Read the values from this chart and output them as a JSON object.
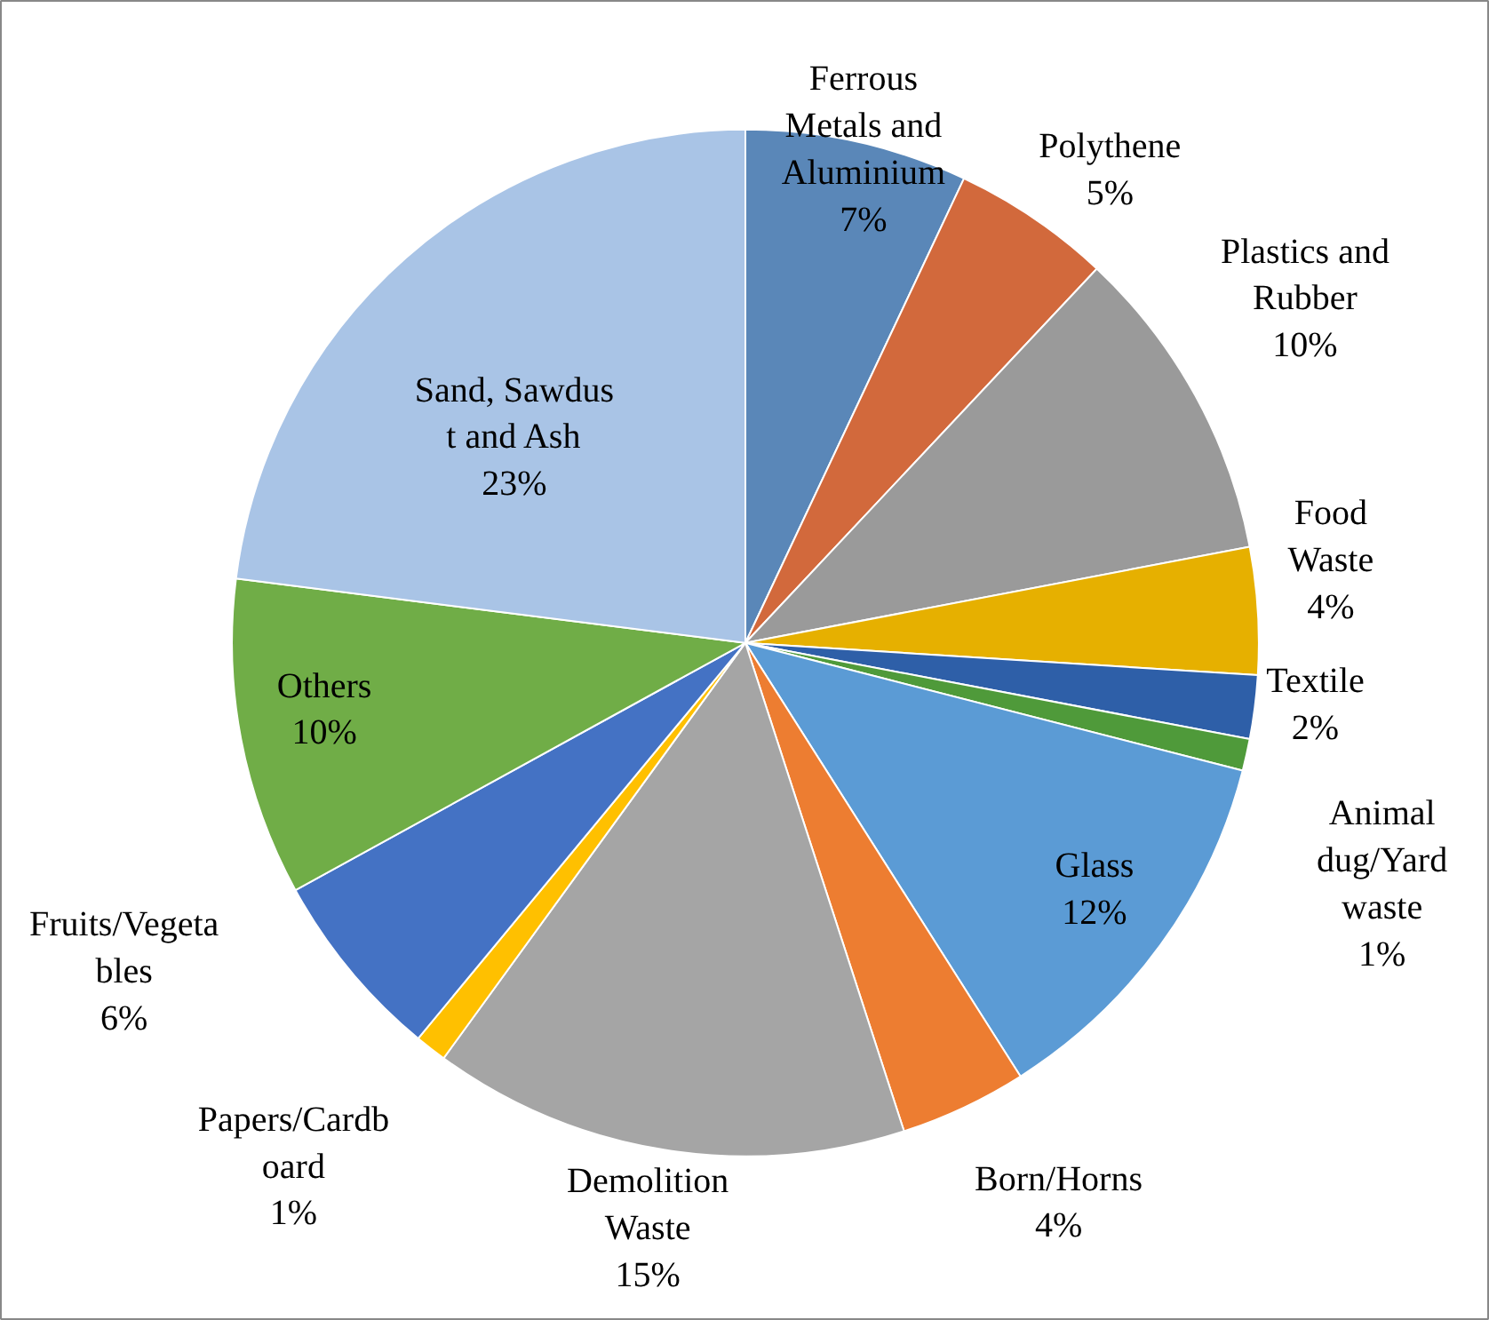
{
  "chart_data": {
    "type": "pie",
    "categories": [
      "Ferrous\nMetals and\nAluminium",
      "Polythene",
      "Plastics and\nRubber",
      "Food\nWaste",
      "Textile",
      "Animal\ndug/Yard\nwaste",
      "Glass",
      "Born/Horns",
      "Demolition\nWaste",
      "Papers/Cardb\noard",
      "Fruits/Vegeta\nbles",
      "Others",
      "Sand, Sawdus\nt and Ash"
    ],
    "values": [
      7,
      5,
      10,
      4,
      2,
      1,
      12,
      4,
      15,
      1,
      6,
      10,
      23
    ],
    "colors": [
      "#5a87b8",
      "#d2693c",
      "#9a9a9a",
      "#e6b000",
      "#2e5fa8",
      "#4f9a3a",
      "#5b9bd5",
      "#ed7d31",
      "#a5a5a5",
      "#ffc000",
      "#4472c4",
      "#70ad47",
      "#a9c4e6"
    ],
    "value_labels": [
      "7%",
      "5%",
      "10%",
      "4%",
      "2%",
      "1%",
      "12%",
      "4%",
      "15%",
      "1%",
      "6%",
      "10%",
      "23%"
    ]
  }
}
